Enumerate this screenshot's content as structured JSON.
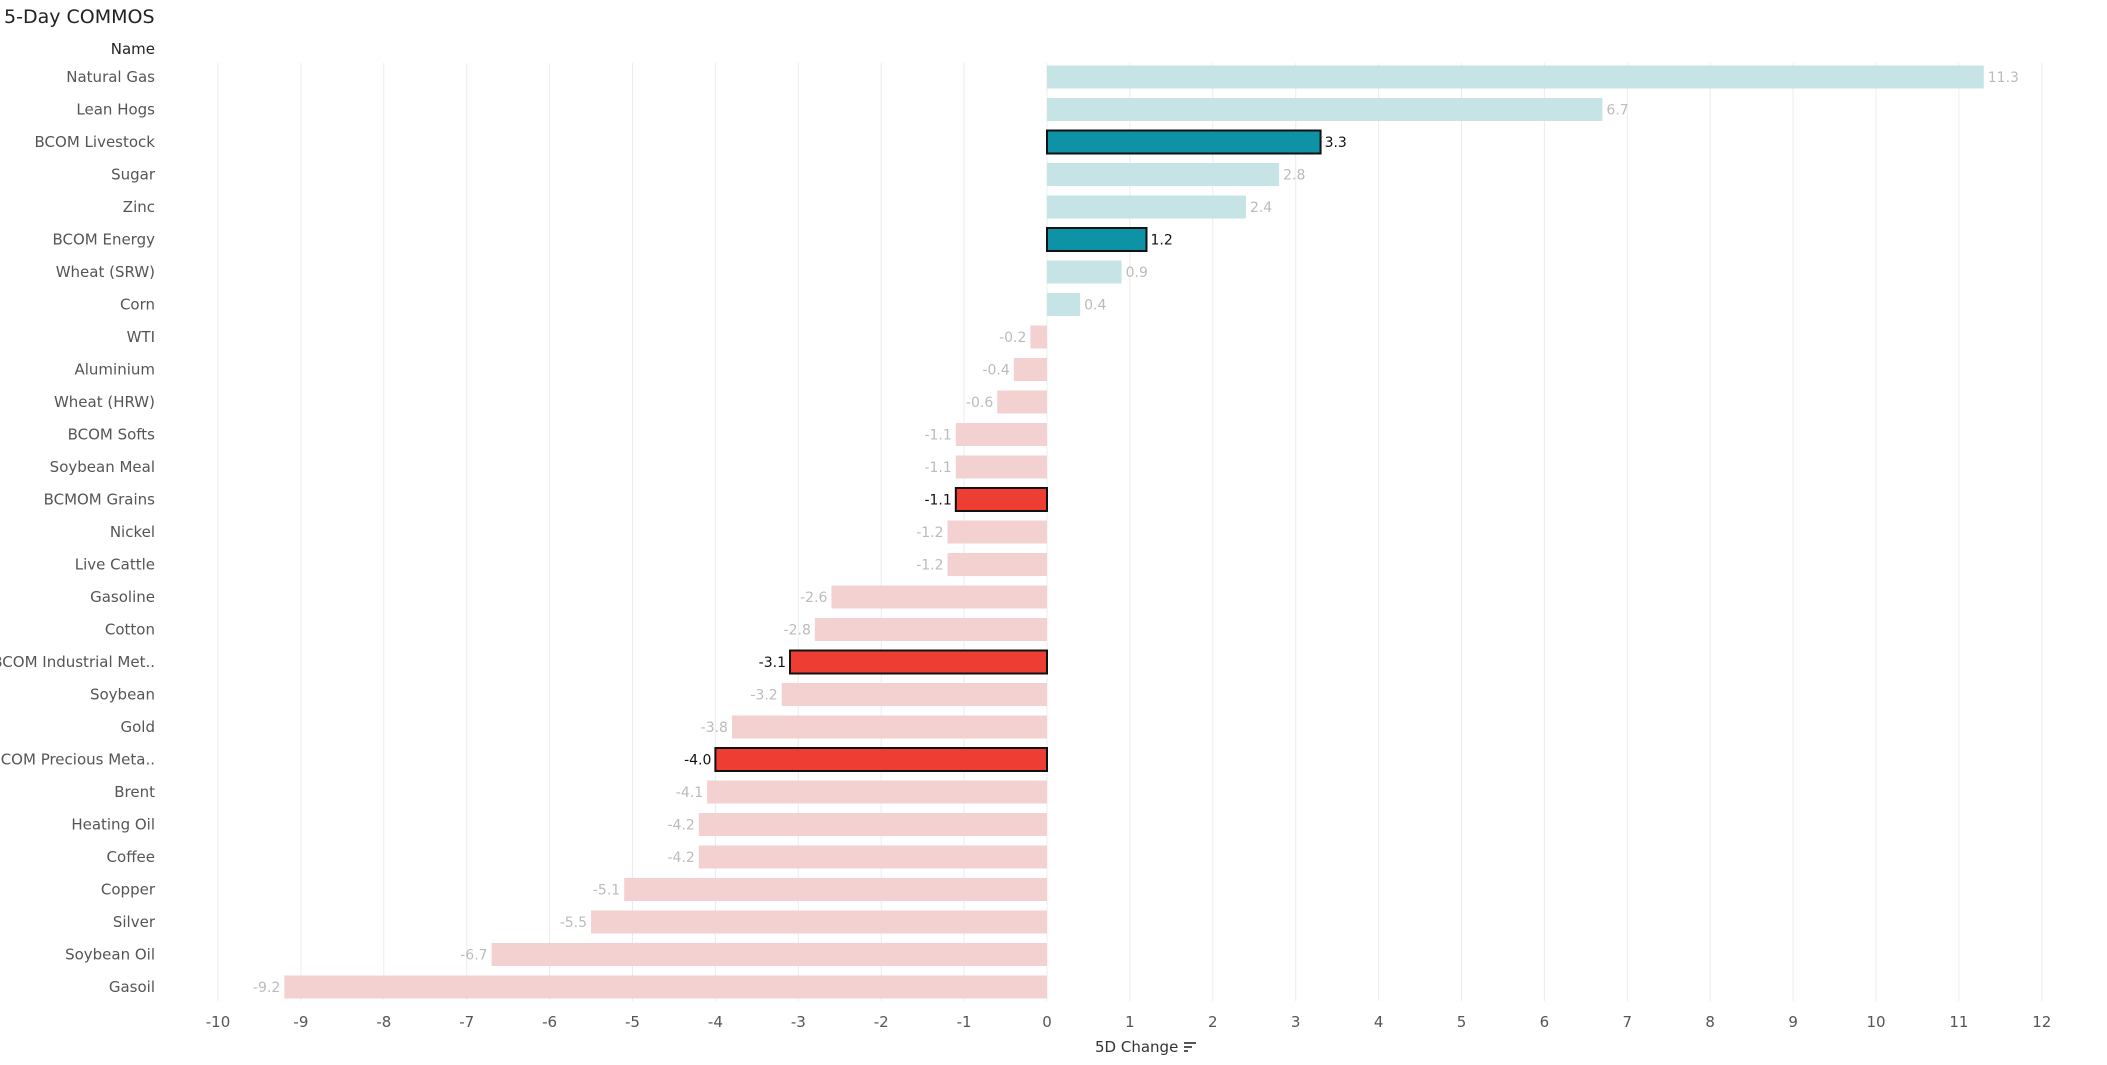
{
  "title": "5-Day COMMOS",
  "row_header": "Name",
  "xlabel": "5D Change",
  "sort_icon": "sort-descending-icon",
  "colors": {
    "pos_highlight": "#0e93a6",
    "pos_muted": "#c6e3e6",
    "neg_highlight": "#ee3e33",
    "neg_muted": "#f3d1d0",
    "label_muted": "#bbbbbb",
    "label_highlight": "#111111"
  },
  "chart_data": {
    "type": "bar",
    "orientation": "horizontal",
    "xlabel": "5D Change",
    "xlim": [
      -10.7,
      12.7
    ],
    "xticks": [
      -10,
      -9,
      -8,
      -7,
      -6,
      -5,
      -4,
      -3,
      -2,
      -1,
      0,
      1,
      2,
      3,
      4,
      5,
      6,
      7,
      8,
      9,
      10,
      11,
      12
    ],
    "grid": true,
    "categories": [
      "Natural Gas",
      "Lean Hogs",
      "BCOM Livestock",
      "Sugar",
      "Zinc",
      "BCOM Energy",
      "Wheat (SRW)",
      "Corn",
      "WTI",
      "Aluminium",
      "Wheat (HRW)",
      "BCOM Softs",
      "Soybean Meal",
      "BCMOM Grains",
      "Nickel",
      "Live Cattle",
      "Gasoline",
      "Cotton",
      "BCOM Industrial Met..",
      "Soybean",
      "Gold",
      "BCOM Precious Meta..",
      "Brent",
      "Heating Oil",
      "Coffee",
      "Copper",
      "Silver",
      "Soybean Oil",
      "Gasoil"
    ],
    "values": [
      11.3,
      6.7,
      3.3,
      2.8,
      2.4,
      1.2,
      0.9,
      0.4,
      -0.2,
      -0.4,
      -0.6,
      -1.1,
      -1.1,
      -1.1,
      -1.2,
      -1.2,
      -2.6,
      -2.8,
      -3.1,
      -3.2,
      -3.8,
      -4.0,
      -4.1,
      -4.2,
      -4.2,
      -5.1,
      -5.5,
      -6.7,
      -9.2
    ],
    "labels": [
      "11.3",
      "6.7",
      "3.3",
      "2.8",
      "2.4",
      "1.2",
      "0.9",
      "0.4",
      "-0.2",
      "-0.4",
      "-0.6",
      "-1.1",
      "-1.1",
      "-1.1",
      "-1.2",
      "-1.2",
      "-2.6",
      "-2.8",
      "-3.1",
      "-3.2",
      "-3.8",
      "-4.0",
      "-4.1",
      "-4.2",
      "-4.2",
      "-5.1",
      "-5.5",
      "-6.7",
      "-9.2"
    ],
    "highlighted": [
      "BCOM Livestock",
      "BCOM Energy",
      "BCMOM Grains",
      "BCOM Industrial Met..",
      "BCOM Precious Meta.."
    ]
  }
}
